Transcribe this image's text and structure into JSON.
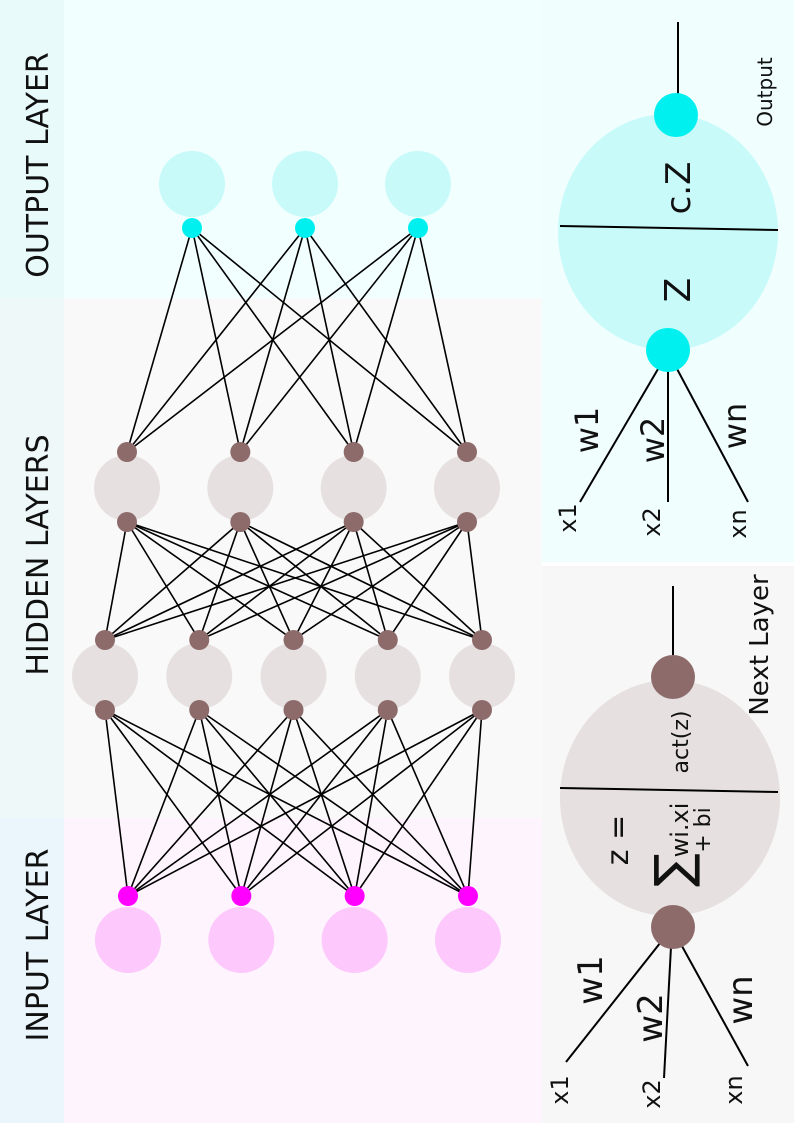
{
  "layers": {
    "input_label": "INPUT LAYER",
    "hidden_label": "HIDDEN LAYERS",
    "output_label": "OUTPUT LAYER"
  },
  "network": {
    "input_nodes": 4,
    "hidden_layers": [
      5,
      4
    ],
    "output_nodes": 3
  },
  "hidden_neuron_detail": {
    "inputs": [
      "x1",
      "x2",
      "xn"
    ],
    "weights": [
      "w1",
      "w2",
      "wn"
    ],
    "z_equals": "z =",
    "sum_symbol": "∑",
    "sum_term": "wi.xi",
    "sum_bias": "+ bi",
    "activation": "act(z)",
    "next_label": "Next Layer"
  },
  "output_neuron_detail": {
    "inputs": [
      "x1",
      "x2",
      "xn"
    ],
    "weights": [
      "w1",
      "w2",
      "wn"
    ],
    "z_label": "Z",
    "cz_label": "c.Z",
    "output_label": "Output"
  },
  "colors": {
    "input_node": "#fdc8fb",
    "input_dot": "#ff00ff",
    "input_band": "#fef4fd",
    "hidden_node": "#e7e0e0",
    "hidden_dot": "#8d6b6b",
    "hidden_band": "#f9f9f9",
    "output_node": "#c8fafa",
    "output_dot": "#00f0f0",
    "output_band": "#f1fffe",
    "label_strip_top": "#e8fafa",
    "label_strip_mid": "#eef8f8",
    "label_strip_bottom": "#eaf5fc",
    "panel_gray": "#f7f7f7",
    "panel_cyan": "#f0fffe"
  }
}
